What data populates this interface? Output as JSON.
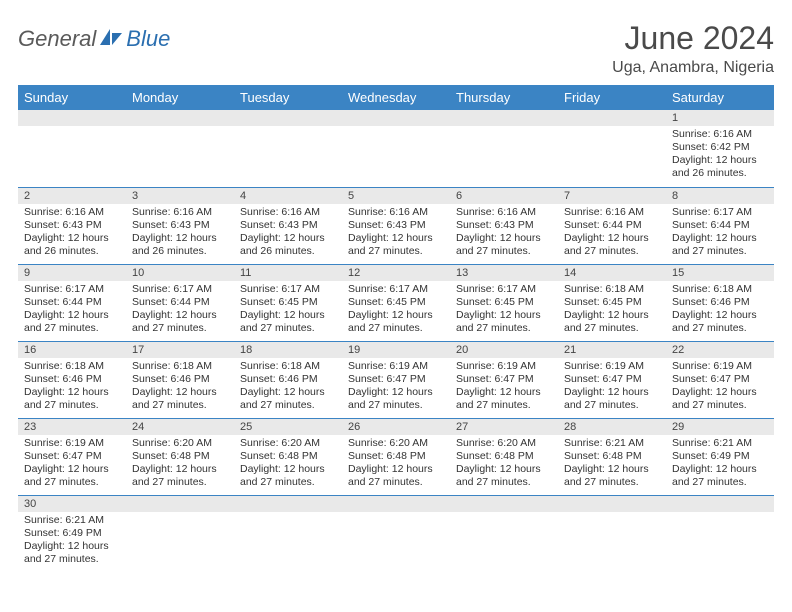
{
  "colors": {
    "header_bg": "#3b84c4",
    "header_text": "#ffffff",
    "daynum_bg": "#e9e9e9",
    "row_border": "#3b84c4",
    "text": "#333333",
    "logo_gray": "#5a5a5a",
    "logo_blue": "#2b6fb0"
  },
  "logo": {
    "text1": "General",
    "text2": "Blue"
  },
  "title": "June 2024",
  "subtitle": "Uga, Anambra, Nigeria",
  "weekdays": [
    "Sunday",
    "Monday",
    "Tuesday",
    "Wednesday",
    "Thursday",
    "Friday",
    "Saturday"
  ],
  "weeks": [
    [
      {
        "n": "",
        "lines": []
      },
      {
        "n": "",
        "lines": []
      },
      {
        "n": "",
        "lines": []
      },
      {
        "n": "",
        "lines": []
      },
      {
        "n": "",
        "lines": []
      },
      {
        "n": "",
        "lines": []
      },
      {
        "n": "1",
        "lines": [
          "Sunrise: 6:16 AM",
          "Sunset: 6:42 PM",
          "Daylight: 12 hours",
          "and 26 minutes."
        ]
      }
    ],
    [
      {
        "n": "2",
        "lines": [
          "Sunrise: 6:16 AM",
          "Sunset: 6:43 PM",
          "Daylight: 12 hours",
          "and 26 minutes."
        ]
      },
      {
        "n": "3",
        "lines": [
          "Sunrise: 6:16 AM",
          "Sunset: 6:43 PM",
          "Daylight: 12 hours",
          "and 26 minutes."
        ]
      },
      {
        "n": "4",
        "lines": [
          "Sunrise: 6:16 AM",
          "Sunset: 6:43 PM",
          "Daylight: 12 hours",
          "and 26 minutes."
        ]
      },
      {
        "n": "5",
        "lines": [
          "Sunrise: 6:16 AM",
          "Sunset: 6:43 PM",
          "Daylight: 12 hours",
          "and 27 minutes."
        ]
      },
      {
        "n": "6",
        "lines": [
          "Sunrise: 6:16 AM",
          "Sunset: 6:43 PM",
          "Daylight: 12 hours",
          "and 27 minutes."
        ]
      },
      {
        "n": "7",
        "lines": [
          "Sunrise: 6:16 AM",
          "Sunset: 6:44 PM",
          "Daylight: 12 hours",
          "and 27 minutes."
        ]
      },
      {
        "n": "8",
        "lines": [
          "Sunrise: 6:17 AM",
          "Sunset: 6:44 PM",
          "Daylight: 12 hours",
          "and 27 minutes."
        ]
      }
    ],
    [
      {
        "n": "9",
        "lines": [
          "Sunrise: 6:17 AM",
          "Sunset: 6:44 PM",
          "Daylight: 12 hours",
          "and 27 minutes."
        ]
      },
      {
        "n": "10",
        "lines": [
          "Sunrise: 6:17 AM",
          "Sunset: 6:44 PM",
          "Daylight: 12 hours",
          "and 27 minutes."
        ]
      },
      {
        "n": "11",
        "lines": [
          "Sunrise: 6:17 AM",
          "Sunset: 6:45 PM",
          "Daylight: 12 hours",
          "and 27 minutes."
        ]
      },
      {
        "n": "12",
        "lines": [
          "Sunrise: 6:17 AM",
          "Sunset: 6:45 PM",
          "Daylight: 12 hours",
          "and 27 minutes."
        ]
      },
      {
        "n": "13",
        "lines": [
          "Sunrise: 6:17 AM",
          "Sunset: 6:45 PM",
          "Daylight: 12 hours",
          "and 27 minutes."
        ]
      },
      {
        "n": "14",
        "lines": [
          "Sunrise: 6:18 AM",
          "Sunset: 6:45 PM",
          "Daylight: 12 hours",
          "and 27 minutes."
        ]
      },
      {
        "n": "15",
        "lines": [
          "Sunrise: 6:18 AM",
          "Sunset: 6:46 PM",
          "Daylight: 12 hours",
          "and 27 minutes."
        ]
      }
    ],
    [
      {
        "n": "16",
        "lines": [
          "Sunrise: 6:18 AM",
          "Sunset: 6:46 PM",
          "Daylight: 12 hours",
          "and 27 minutes."
        ]
      },
      {
        "n": "17",
        "lines": [
          "Sunrise: 6:18 AM",
          "Sunset: 6:46 PM",
          "Daylight: 12 hours",
          "and 27 minutes."
        ]
      },
      {
        "n": "18",
        "lines": [
          "Sunrise: 6:18 AM",
          "Sunset: 6:46 PM",
          "Daylight: 12 hours",
          "and 27 minutes."
        ]
      },
      {
        "n": "19",
        "lines": [
          "Sunrise: 6:19 AM",
          "Sunset: 6:47 PM",
          "Daylight: 12 hours",
          "and 27 minutes."
        ]
      },
      {
        "n": "20",
        "lines": [
          "Sunrise: 6:19 AM",
          "Sunset: 6:47 PM",
          "Daylight: 12 hours",
          "and 27 minutes."
        ]
      },
      {
        "n": "21",
        "lines": [
          "Sunrise: 6:19 AM",
          "Sunset: 6:47 PM",
          "Daylight: 12 hours",
          "and 27 minutes."
        ]
      },
      {
        "n": "22",
        "lines": [
          "Sunrise: 6:19 AM",
          "Sunset: 6:47 PM",
          "Daylight: 12 hours",
          "and 27 minutes."
        ]
      }
    ],
    [
      {
        "n": "23",
        "lines": [
          "Sunrise: 6:19 AM",
          "Sunset: 6:47 PM",
          "Daylight: 12 hours",
          "and 27 minutes."
        ]
      },
      {
        "n": "24",
        "lines": [
          "Sunrise: 6:20 AM",
          "Sunset: 6:48 PM",
          "Daylight: 12 hours",
          "and 27 minutes."
        ]
      },
      {
        "n": "25",
        "lines": [
          "Sunrise: 6:20 AM",
          "Sunset: 6:48 PM",
          "Daylight: 12 hours",
          "and 27 minutes."
        ]
      },
      {
        "n": "26",
        "lines": [
          "Sunrise: 6:20 AM",
          "Sunset: 6:48 PM",
          "Daylight: 12 hours",
          "and 27 minutes."
        ]
      },
      {
        "n": "27",
        "lines": [
          "Sunrise: 6:20 AM",
          "Sunset: 6:48 PM",
          "Daylight: 12 hours",
          "and 27 minutes."
        ]
      },
      {
        "n": "28",
        "lines": [
          "Sunrise: 6:21 AM",
          "Sunset: 6:48 PM",
          "Daylight: 12 hours",
          "and 27 minutes."
        ]
      },
      {
        "n": "29",
        "lines": [
          "Sunrise: 6:21 AM",
          "Sunset: 6:49 PM",
          "Daylight: 12 hours",
          "and 27 minutes."
        ]
      }
    ],
    [
      {
        "n": "30",
        "lines": [
          "Sunrise: 6:21 AM",
          "Sunset: 6:49 PM",
          "Daylight: 12 hours",
          "and 27 minutes."
        ]
      },
      {
        "n": "",
        "lines": []
      },
      {
        "n": "",
        "lines": []
      },
      {
        "n": "",
        "lines": []
      },
      {
        "n": "",
        "lines": []
      },
      {
        "n": "",
        "lines": []
      },
      {
        "n": "",
        "lines": []
      }
    ]
  ]
}
